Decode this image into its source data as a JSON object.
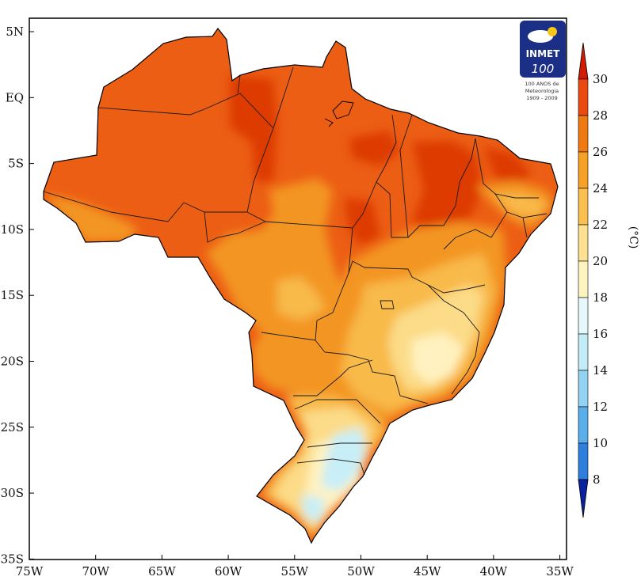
{
  "map": {
    "lat_labels": [
      "5N",
      "EQ",
      "5S",
      "10S",
      "15S",
      "20S",
      "25S",
      "30S",
      "35S"
    ],
    "lon_labels": [
      "75W",
      "70W",
      "65W",
      "60W",
      "55W",
      "50W",
      "45W",
      "40W",
      "35W"
    ]
  },
  "colorbar": {
    "unit": "(°C)",
    "labels": [
      "30",
      "28",
      "26",
      "24",
      "22",
      "20",
      "18",
      "16",
      "14",
      "12",
      "10",
      "8"
    ],
    "colors": [
      "#d41a00",
      "#ea4a10",
      "#f07a12",
      "#f6a028",
      "#f9c050",
      "#fde090",
      "#fff4c0",
      "#e6f8fa",
      "#c2ecf6",
      "#92d2f2",
      "#5aaeea",
      "#2e7ede",
      "#1050c6",
      "#0a22a0"
    ]
  },
  "logo": {
    "brand": "INMET",
    "number": "100",
    "tagline_line1": "100 ANOS de",
    "tagline_line2": "Meteorologia",
    "tagline_line3": "1909 - 2009"
  }
}
